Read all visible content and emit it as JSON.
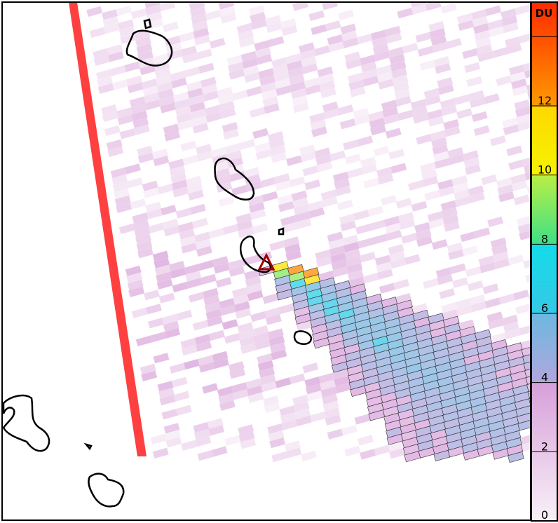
{
  "colorbar": {
    "unit_label": "DU",
    "ticks": [
      "0",
      "2",
      "4",
      "6",
      "8",
      "10",
      "12"
    ],
    "range": [
      0,
      15
    ],
    "colors": {
      "c0": "#f9f1f9",
      "c2": "#e8c8e8",
      "c4a": "#d7a0db",
      "c4b": "#b2a6de",
      "c6a": "#6cb8e0",
      "c6b": "#36c8e6",
      "c8a": "#14dce8",
      "c8b": "#3ee088",
      "c10a": "#b8ee44",
      "c10b": "#f4f400",
      "c12a": "#ffd800",
      "c12b": "#ff9a00",
      "c14": "#ff2a00"
    }
  },
  "map": {
    "swath_edge_color": "#ff4040",
    "volcano_marker_color": "#a00000",
    "coastline_color": "#000000"
  }
}
